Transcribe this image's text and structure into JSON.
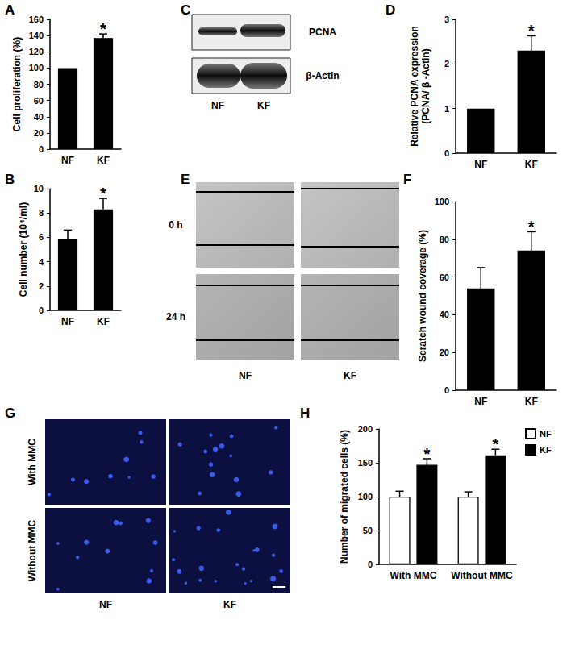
{
  "chart_data": [
    {
      "panel": "A",
      "type": "bar",
      "categories": [
        "NF",
        "KF"
      ],
      "values": [
        100,
        137
      ],
      "errors": [
        null,
        5
      ],
      "annotations": [
        null,
        "*"
      ],
      "color": "#000000",
      "ylabel": "Cell proliferation (%)",
      "ylim": [
        0,
        160
      ],
      "yticks": [
        0,
        20,
        40,
        60,
        80,
        100,
        120,
        140,
        160
      ],
      "grid": false
    },
    {
      "panel": "B",
      "type": "bar",
      "categories": [
        "NF",
        "KF"
      ],
      "values": [
        5.9,
        8.3
      ],
      "errors": [
        0.7,
        0.9
      ],
      "annotations": [
        null,
        "*"
      ],
      "color": "#000000",
      "ylabel": "Cell number (10⁴/ml)",
      "ylim": [
        0,
        10
      ],
      "yticks": [
        0,
        2,
        4,
        6,
        8,
        10
      ],
      "grid": false
    },
    {
      "panel": "D",
      "type": "bar",
      "categories": [
        "NF",
        "KF"
      ],
      "values": [
        1,
        2.3
      ],
      "errors": [
        null,
        0.33
      ],
      "annotations": [
        null,
        "*"
      ],
      "color": "#000000",
      "ylabel": "Relative PCNA expression\n(PCNA/ β -Actin)",
      "ylim": [
        0,
        3
      ],
      "yticks": [
        0,
        1,
        2,
        3
      ],
      "grid": false
    },
    {
      "panel": "F",
      "type": "bar",
      "categories": [
        "NF",
        "KF"
      ],
      "values": [
        54,
        74
      ],
      "errors": [
        11,
        10
      ],
      "annotations": [
        null,
        "*"
      ],
      "color": "#000000",
      "ylabel": "Scratch wound coverage (%)",
      "ylim": [
        0,
        100
      ],
      "yticks": [
        0,
        20,
        40,
        60,
        80,
        100
      ],
      "grid": false
    },
    {
      "panel": "H",
      "type": "bar",
      "categories": [
        "With MMC",
        "Without MMC"
      ],
      "series": [
        {
          "name": "NF",
          "color": "#ffffff",
          "values": [
            100,
            100
          ],
          "errors": [
            8,
            7
          ],
          "annotations": [
            null,
            null
          ]
        },
        {
          "name": "KF",
          "color": "#000000",
          "values": [
            147,
            161
          ],
          "errors": [
            9,
            9
          ],
          "annotations": [
            "*",
            "*"
          ]
        }
      ],
      "legend": "top-right",
      "ylabel": "Number of migrated cells (%)",
      "ylim": [
        0,
        200
      ],
      "yticks": [
        0,
        50,
        100,
        150,
        200
      ],
      "grid": false
    }
  ],
  "images": {
    "blot": {
      "panel": "C",
      "rows": [
        "PCNA",
        "β-Actin"
      ],
      "lanes": [
        "NF",
        "KF"
      ]
    },
    "scratch_assay": {
      "panel": "E",
      "rows": [
        "0 h",
        "24 h"
      ],
      "lanes": [
        "NF",
        "KF"
      ]
    },
    "fluorescence": {
      "panel": "G",
      "rows": [
        "With MMC",
        "Without MMC"
      ],
      "lanes": [
        "NF",
        "KF"
      ]
    }
  }
}
